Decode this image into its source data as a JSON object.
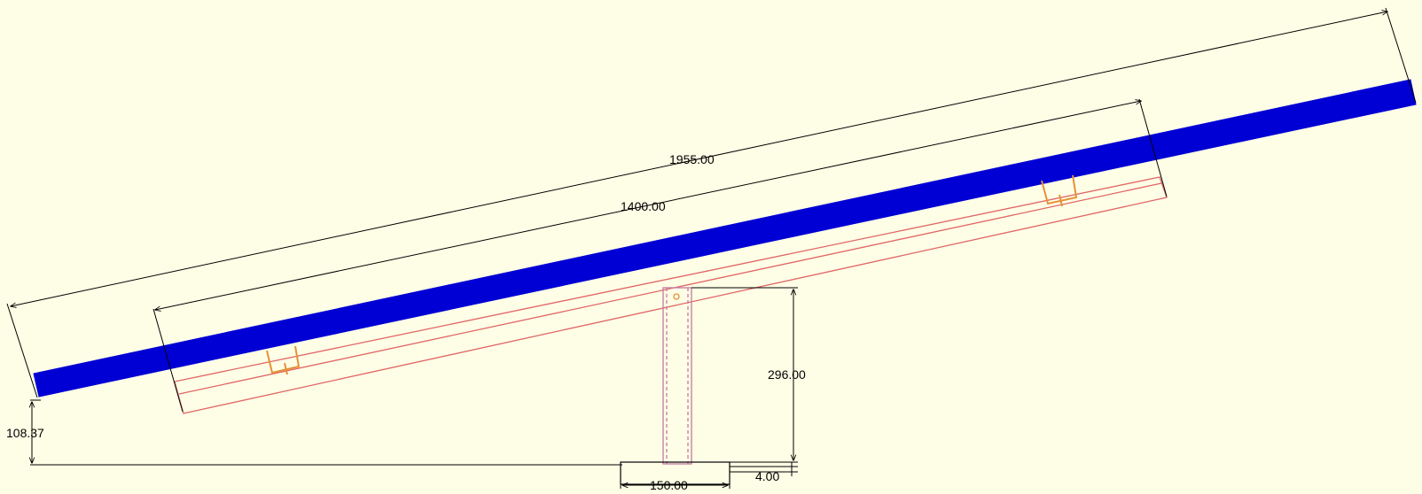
{
  "drawing": {
    "dimensions": {
      "panel_length": "1955.00",
      "rail_length": "1400.00",
      "post_height": "296.00",
      "front_clearance": "108.37",
      "base_plate_width": "150.00",
      "base_plate_thickness": "4.00"
    },
    "colors": {
      "background": "#fefee6",
      "panel": "#0000d4",
      "rail": "#e06666",
      "clamp": "#e69138",
      "post": "#c27ba0",
      "dimension_line": "#000000"
    }
  }
}
